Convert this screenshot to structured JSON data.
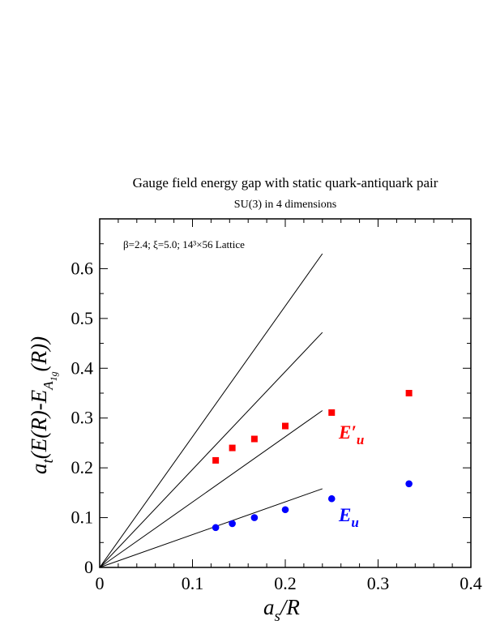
{
  "chart_data": {
    "type": "scatter",
    "title": "Gauge field energy gap with static quark-antiquark pair",
    "subtitle": "SU(3) in 4 dimensions",
    "annotation": "β=2.4; ξ=5.0; 14³×56 Lattice",
    "xlabel": "a_s/R",
    "ylabel": "a_t(E(R)-E_A1g(R))",
    "xlim": [
      0,
      0.4
    ],
    "ylim": [
      0,
      0.7
    ],
    "x_ticks": [
      "0",
      "0.1",
      "0.2",
      "0.3",
      "0.4"
    ],
    "y_ticks": [
      "0",
      "0.1",
      "0.2",
      "0.3",
      "0.4",
      "0.5",
      "0.6"
    ],
    "grid": false,
    "series": [
      {
        "name": "E'u",
        "color": "#ff0000",
        "marker": "square",
        "x": [
          0.125,
          0.1429,
          0.1667,
          0.2,
          0.25,
          0.3333
        ],
        "y": [
          0.215,
          0.24,
          0.258,
          0.284,
          0.311,
          0.35
        ]
      },
      {
        "name": "Eu",
        "color": "#0000ff",
        "marker": "circle",
        "x": [
          0.125,
          0.1429,
          0.1667,
          0.2,
          0.25,
          0.3333
        ],
        "y": [
          0.08,
          0.088,
          0.1,
          0.116,
          0.138,
          0.168
        ]
      }
    ],
    "reference_lines": [
      {
        "x": [
          0,
          0.24
        ],
        "y": [
          0,
          0.63
        ]
      },
      {
        "x": [
          0,
          0.24
        ],
        "y": [
          0,
          0.472
        ]
      },
      {
        "x": [
          0,
          0.24
        ],
        "y": [
          0,
          0.315
        ]
      },
      {
        "x": [
          0,
          0.24
        ],
        "y": [
          0,
          0.158
        ]
      }
    ]
  }
}
